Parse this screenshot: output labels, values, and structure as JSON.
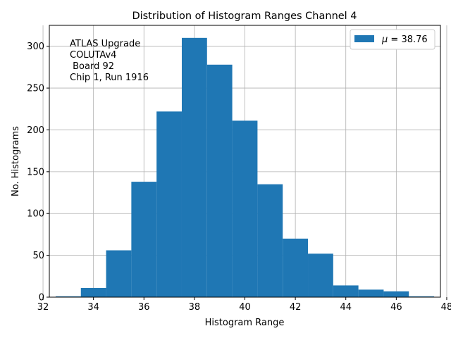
{
  "chart_data": {
    "type": "bar",
    "title": "Distribution of Histogram Ranges Channel 4",
    "xlabel": "Histogram Range",
    "ylabel": "No. Histograms",
    "xlim": [
      32.25,
      47.75
    ],
    "ylim": [
      0,
      325
    ],
    "xticks": [
      "32",
      "34",
      "36",
      "38",
      "40",
      "42",
      "44",
      "46",
      "48"
    ],
    "yticks": [
      "0",
      "50",
      "100",
      "150",
      "200",
      "250",
      "300"
    ],
    "bin_edges": [
      32.5,
      33.5,
      34.5,
      35.5,
      36.5,
      37.5,
      38.5,
      39.5,
      40.5,
      41.5,
      42.5,
      43.5,
      44.5,
      45.5,
      46.5,
      47.5
    ],
    "values": [
      1,
      11,
      56,
      138,
      222,
      310,
      278,
      211,
      135,
      70,
      52,
      14,
      9,
      7,
      1
    ],
    "bar_color": "#1f77b4",
    "grid": true,
    "legend": {
      "location": "top-right",
      "label": "μ = 38.76",
      "mu_symbol": "μ",
      "mu_value": " = 38.76"
    },
    "annotation": [
      "ATLAS Upgrade",
      "COLUTAv4",
      " Board 92",
      "Chip 1, Run 1916"
    ]
  }
}
